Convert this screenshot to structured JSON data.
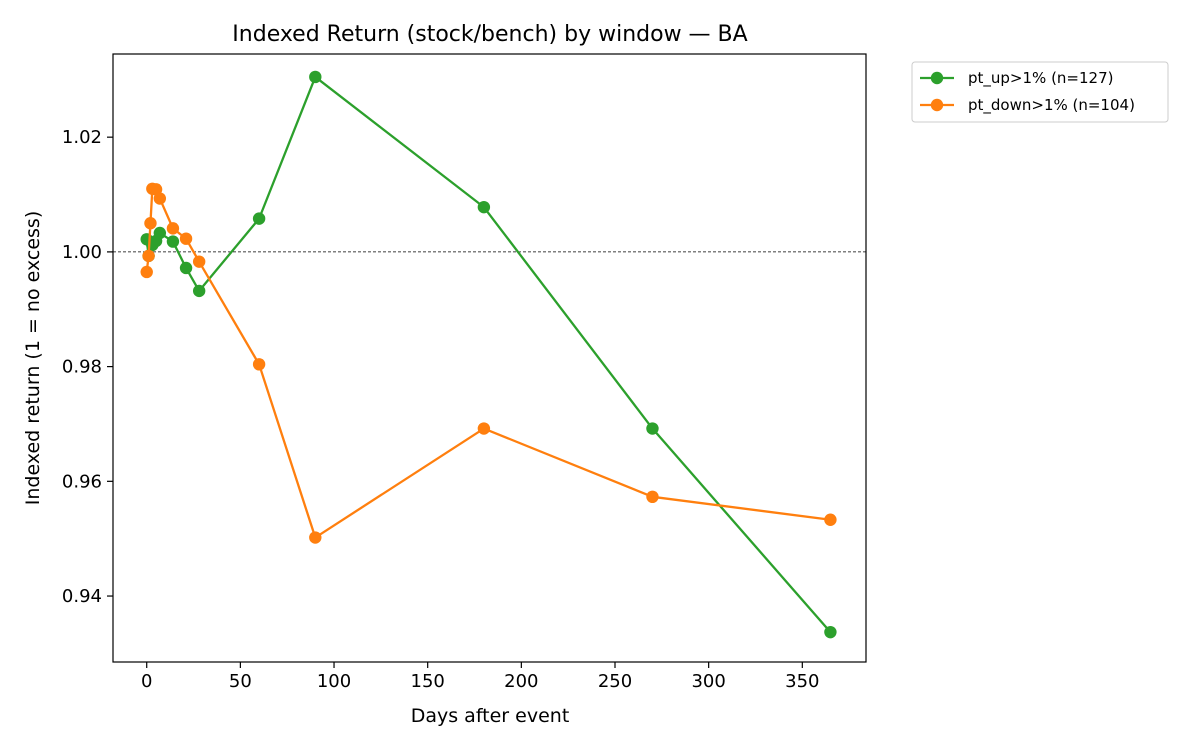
{
  "chart_data": {
    "type": "line",
    "title": "Indexed Return (stock/bench) by window — BA",
    "xlabel": "Days after event",
    "ylabel": "Indexed return (1 = no excess)",
    "xlim": [
      -18,
      384
    ],
    "ylim": [
      0.9285,
      1.0345
    ],
    "xticks": [
      0,
      50,
      100,
      150,
      200,
      250,
      300,
      350
    ],
    "yticks": [
      0.94,
      0.96,
      0.98,
      1.0,
      1.02
    ],
    "ytick_labels": [
      "0.94",
      "0.96",
      "0.98",
      "1.00",
      "1.02"
    ],
    "reference_line": {
      "y": 1.0,
      "style": "dashed",
      "color": "#000000"
    },
    "grid": false,
    "legend_position": "outside-top-right",
    "series": [
      {
        "name": "pt_up>1% (n=127)",
        "color": "#2ca02c",
        "x": [
          0,
          1,
          3,
          5,
          7,
          14,
          21,
          28,
          60,
          90,
          180,
          270,
          365
        ],
        "y": [
          1.0022,
          0.9993,
          1.0012,
          1.0019,
          1.0033,
          1.0018,
          0.9972,
          0.9932,
          1.0058,
          1.0305,
          1.0078,
          0.9692,
          0.9337
        ]
      },
      {
        "name": "pt_down>1% (n=104)",
        "color": "#ff7f0e",
        "x": [
          0,
          1,
          2,
          3,
          5,
          7,
          14,
          21,
          28,
          60,
          90,
          180,
          270,
          365
        ],
        "y": [
          0.9965,
          0.9993,
          1.005,
          1.011,
          1.0109,
          1.0093,
          1.0041,
          1.0023,
          0.9983,
          0.9804,
          0.9502,
          0.9692,
          0.9573,
          0.9533
        ]
      }
    ]
  }
}
